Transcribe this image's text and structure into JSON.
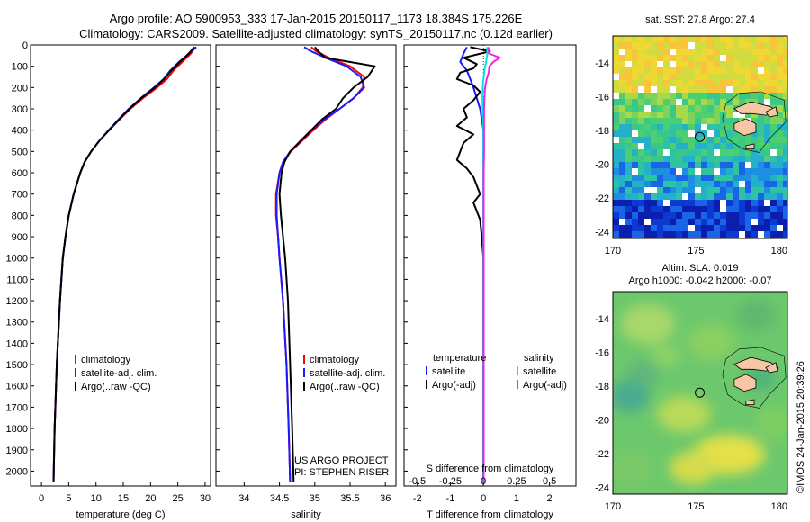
{
  "header": {
    "line1": "Argo profile: AO 5900953_333 17-Jan-2015 20150117_1173 18.384S 175.226E",
    "line2": "Climatology: CARS2009. Satellite-adjusted climatology: synTS_20150117.nc (0.12d earlier)"
  },
  "depth_ticks": [
    "0",
    "100",
    "200",
    "300",
    "400",
    "500",
    "600",
    "700",
    "800",
    "900",
    "1000",
    "1100",
    "1200",
    "1300",
    "1400",
    "1500",
    "1600",
    "1700",
    "1800",
    "1900",
    "2000"
  ],
  "colors": {
    "climatology": "#ff0000",
    "satellite": "#1a1aff",
    "argo": "#000000",
    "cyan": "#00e5e5",
    "magenta": "#ff22dd"
  },
  "credits": {
    "line1": "US ARGO PROJECT",
    "line2": "PI: STEPHEN RISER"
  },
  "footer_stamp": "©IMOS 24-Jan-2015 20:39:26",
  "chart_data": [
    {
      "type": "line",
      "xlabel": "temperature (deg C)",
      "ylabel": "",
      "xlim": [
        -2,
        31
      ],
      "ylim": [
        0,
        2070
      ],
      "x_ticks": [
        "0",
        "5",
        "10",
        "15",
        "20",
        "25",
        "30"
      ],
      "x_tick_values": [
        0,
        5,
        10,
        15,
        20,
        25,
        30
      ],
      "legend": [
        "climatology",
        "satellite-adj. clim.",
        "Argo(..raw -QC)"
      ],
      "series": [
        {
          "name": "climatology",
          "depth": [
            10,
            40,
            80,
            120,
            160,
            200,
            250,
            300,
            350,
            400,
            450,
            500,
            550,
            600,
            700,
            800,
            900,
            1000,
            1200,
            1500,
            1800,
            2050
          ],
          "values": [
            28.2,
            27.4,
            25.8,
            24.2,
            23.0,
            21.2,
            18.6,
            16.3,
            14.3,
            12.4,
            10.6,
            9.1,
            7.9,
            7.1,
            5.9,
            5.0,
            4.4,
            3.9,
            3.4,
            2.8,
            2.4,
            2.2
          ]
        },
        {
          "name": "satellite-adj. clim.",
          "depth": [
            10,
            40,
            80,
            120,
            160,
            200,
            250,
            300,
            350,
            400,
            450,
            500,
            550,
            600,
            700,
            800,
            900,
            1000,
            1200,
            1500,
            1800,
            2050
          ],
          "values": [
            28.4,
            27.1,
            25.2,
            23.6,
            22.4,
            20.6,
            18.2,
            16.0,
            14.1,
            12.3,
            10.6,
            9.1,
            7.9,
            7.1,
            5.9,
            5.0,
            4.4,
            3.9,
            3.4,
            2.8,
            2.4,
            2.2
          ]
        },
        {
          "name": "Argo(..raw -QC)",
          "depth": [
            10,
            40,
            80,
            120,
            160,
            200,
            250,
            300,
            350,
            400,
            450,
            500,
            550,
            600,
            700,
            800,
            900,
            1000,
            1200,
            1500,
            1800,
            2050
          ],
          "values": [
            28.0,
            27.0,
            25.4,
            23.8,
            22.5,
            20.8,
            18.3,
            16.1,
            14.2,
            12.4,
            10.6,
            9.1,
            7.9,
            7.1,
            5.9,
            5.0,
            4.4,
            3.9,
            3.4,
            2.8,
            2.4,
            2.2
          ]
        }
      ]
    },
    {
      "type": "line",
      "xlabel": "salinity",
      "ylabel": "",
      "xlim": [
        33.6,
        36.15
      ],
      "ylim": [
        0,
        2070
      ],
      "x_ticks": [
        "34",
        "34.5",
        "35",
        "35.5",
        "36"
      ],
      "x_tick_values": [
        34,
        34.5,
        35,
        35.5,
        36
      ],
      "legend": [
        "climatology",
        "satellite-adj. clim.",
        "Argo(..raw -QC)"
      ],
      "series": [
        {
          "name": "climatology",
          "depth": [
            10,
            30,
            60,
            100,
            150,
            200,
            250,
            300,
            350,
            400,
            450,
            500,
            550,
            600,
            700,
            800,
            900,
            1000,
            1200,
            1500,
            1800,
            2050
          ],
          "values": [
            34.95,
            35.02,
            35.2,
            35.5,
            35.7,
            35.68,
            35.55,
            35.35,
            35.15,
            34.98,
            34.82,
            34.66,
            34.55,
            34.5,
            34.45,
            34.45,
            34.48,
            34.5,
            34.55,
            34.6,
            34.63,
            34.65
          ]
        },
        {
          "name": "satellite-adj. clim.",
          "depth": [
            10,
            30,
            60,
            100,
            150,
            200,
            250,
            300,
            350,
            400,
            450,
            500,
            550,
            600,
            700,
            800,
            900,
            1000,
            1200,
            1500,
            1800,
            2050
          ],
          "values": [
            34.85,
            34.95,
            35.15,
            35.45,
            35.65,
            35.7,
            35.55,
            35.35,
            35.13,
            34.95,
            34.8,
            34.65,
            34.55,
            34.5,
            34.46,
            34.46,
            34.48,
            34.5,
            34.55,
            34.6,
            34.63,
            34.65
          ]
        },
        {
          "name": "Argo(..raw -QC)",
          "depth": [
            10,
            30,
            60,
            100,
            150,
            200,
            250,
            300,
            350,
            400,
            450,
            500,
            550,
            600,
            700,
            800,
            900,
            1000,
            1200,
            1500,
            1800,
            2050
          ],
          "values": [
            35.0,
            35.05,
            35.15,
            35.85,
            35.75,
            35.55,
            35.4,
            35.3,
            35.1,
            34.95,
            34.8,
            34.65,
            34.57,
            34.53,
            34.5,
            34.52,
            34.55,
            34.58,
            34.62,
            34.65,
            34.68,
            34.7
          ]
        }
      ]
    },
    {
      "type": "line",
      "xlabel": "T difference from climatology",
      "ylabel": "",
      "xlim": [
        -2.4,
        2.8
      ],
      "ylim": [
        0,
        2070
      ],
      "x_ticks": [
        "-2",
        "-1",
        "0",
        "1",
        "2"
      ],
      "x_tick_values": [
        -2,
        -1,
        0,
        1,
        2
      ],
      "top_xlabel": "S difference from climatology",
      "top_ticks": [
        "-0.5",
        "-0.25",
        "0",
        "0.25",
        "0.5"
      ],
      "top_tick_values": [
        -0.5,
        -0.25,
        0,
        0.25,
        0.5
      ],
      "legend_headers": [
        "temperature",
        "salinity"
      ],
      "legend": [
        "satellite",
        "Argo(-adj)",
        "satellite",
        "Argo(-adj)"
      ],
      "series": [
        {
          "name": "temperature satellite",
          "depth": [
            10,
            40,
            80,
            120,
            160,
            200,
            250,
            300,
            400,
            500,
            600,
            800,
            1000,
            1500,
            2050
          ],
          "values": [
            -0.5,
            -0.6,
            -0.7,
            -0.5,
            -0.4,
            -0.3,
            -0.2,
            -0.1,
            0,
            0,
            0,
            0,
            0,
            0,
            0
          ]
        },
        {
          "name": "temperature Argo(-adj)",
          "depth": [
            10,
            30,
            60,
            90,
            110,
            130,
            160,
            190,
            220,
            260,
            300,
            340,
            380,
            420,
            460,
            500,
            540,
            580,
            620,
            660,
            700,
            740,
            780,
            820,
            900,
            1000,
            1200,
            1500,
            1800,
            2050
          ],
          "values": [
            -0.4,
            0.2,
            -0.6,
            -0.2,
            -0.3,
            -0.7,
            -0.8,
            -0.3,
            -0.1,
            -0.3,
            -0.6,
            -0.5,
            -0.8,
            -0.3,
            -0.6,
            -0.7,
            -0.8,
            -0.5,
            -0.3,
            -0.2,
            -0.1,
            -0.3,
            -0.2,
            -0.1,
            -0.05,
            0,
            0,
            0,
            0,
            0
          ]
        },
        {
          "name": "salinity satellite",
          "depth": [
            10,
            40,
            80,
            120,
            160,
            200,
            250,
            300,
            400,
            500,
            600,
            800,
            1000,
            1500,
            2050
          ],
          "values": [
            0.1,
            0.12,
            0.08,
            0.03,
            0,
            -0.02,
            -0.03,
            -0.02,
            0,
            0,
            0,
            0,
            0,
            0,
            0
          ]
        },
        {
          "name": "salinity Argo(-adj)",
          "depth": [
            10,
            40,
            60,
            80,
            100,
            130,
            160,
            200,
            250,
            300,
            400,
            500,
            600,
            700,
            800,
            1000,
            1500,
            2050
          ],
          "values": [
            0.15,
            0.17,
            0.5,
            0.3,
            0.18,
            0.16,
            0.1,
            0.05,
            0.03,
            0.02,
            0.02,
            0.02,
            0.01,
            0.01,
            0.01,
            0.01,
            0.01,
            0.01
          ]
        }
      ]
    },
    {
      "type": "heatmap",
      "title": "sat. SST: 27.8  Argo: 27.4",
      "xlim": [
        170,
        180.5
      ],
      "ylim": [
        -24.4,
        -12.4
      ],
      "x_ticks": [
        "170",
        "175",
        "180"
      ],
      "x_tick_values": [
        170,
        175,
        180
      ],
      "y_ticks": [
        "-14",
        "-16",
        "-18",
        "-20",
        "-22",
        "-24"
      ],
      "y_tick_values": [
        -14,
        -16,
        -18,
        -20,
        -22,
        -24
      ],
      "float_position": [
        175.226,
        -18.384
      ]
    },
    {
      "type": "heatmap",
      "title": "Altim. SLA: 0.019",
      "subtitle": "Argo h1000: -0.042 h2000: -0.07",
      "xlim": [
        170,
        180.5
      ],
      "ylim": [
        -24.4,
        -12.4
      ],
      "x_ticks": [
        "170",
        "175",
        "180"
      ],
      "x_tick_values": [
        170,
        175,
        180
      ],
      "y_ticks": [
        "-14",
        "-16",
        "-18",
        "-20",
        "-22",
        "-24"
      ],
      "y_tick_values": [
        -14,
        -16,
        -18,
        -20,
        -22,
        -24
      ],
      "float_position": [
        175.226,
        -18.384
      ]
    }
  ]
}
